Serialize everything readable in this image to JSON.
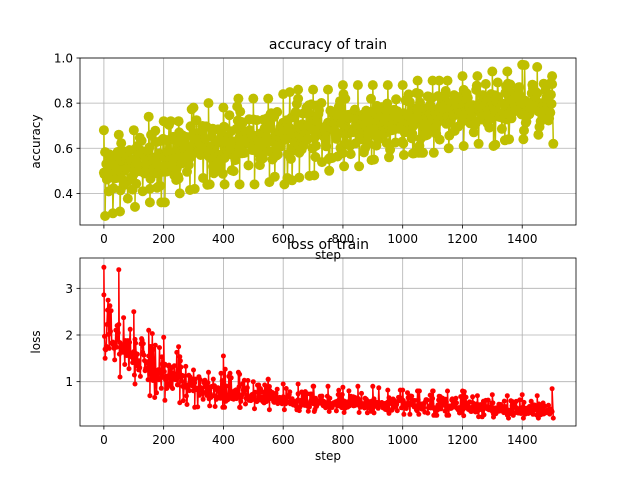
{
  "chart_data": [
    {
      "type": "line",
      "title": "accuracy of train",
      "xlabel": "step",
      "ylabel": "accuracy",
      "xlim": [
        -80,
        1580
      ],
      "ylim": [
        0.26,
        1.0
      ],
      "xticks": [
        0,
        200,
        400,
        600,
        800,
        1000,
        1200,
        1400
      ],
      "yticks": [
        0.4,
        0.6,
        0.8,
        1.0
      ],
      "grid": true,
      "color": "#bfbf00",
      "marker": "circle-large",
      "series": [
        {
          "x": [
            0,
            50,
            100,
            150,
            200,
            250,
            300,
            350,
            400,
            450,
            500,
            550,
            600,
            650,
            700,
            750,
            800,
            850,
            900,
            950,
            1000,
            1050,
            1100,
            1150,
            1200,
            1250,
            1300,
            1350,
            1400,
            1450,
            1500
          ],
          "y": [
            0.48,
            0.5,
            0.52,
            0.55,
            0.56,
            0.58,
            0.6,
            0.62,
            0.62,
            0.63,
            0.64,
            0.65,
            0.66,
            0.67,
            0.68,
            0.69,
            0.7,
            0.7,
            0.71,
            0.72,
            0.73,
            0.74,
            0.74,
            0.75,
            0.76,
            0.77,
            0.77,
            0.78,
            0.79,
            0.8,
            0.8
          ],
          "low": [
            0.3,
            0.32,
            0.34,
            0.36,
            0.36,
            0.4,
            0.42,
            0.44,
            0.44,
            0.44,
            0.44,
            0.45,
            0.44,
            0.47,
            0.48,
            0.5,
            0.52,
            0.52,
            0.55,
            0.56,
            0.57,
            0.58,
            0.58,
            0.6,
            0.61,
            0.62,
            0.61,
            0.64,
            0.64,
            0.66,
            0.62
          ],
          "high": [
            0.68,
            0.66,
            0.68,
            0.74,
            0.72,
            0.72,
            0.78,
            0.8,
            0.78,
            0.82,
            0.82,
            0.82,
            0.84,
            0.86,
            0.86,
            0.86,
            0.88,
            0.88,
            0.88,
            0.88,
            0.88,
            0.9,
            0.9,
            0.9,
            0.92,
            0.92,
            0.94,
            0.94,
            0.97,
            0.96,
            0.92
          ]
        }
      ]
    },
    {
      "type": "line",
      "title": "loss of train",
      "xlabel": "step",
      "ylabel": "loss",
      "xlim": [
        -80,
        1580
      ],
      "ylim": [
        0.05,
        3.65
      ],
      "xticks": [
        0,
        200,
        400,
        600,
        800,
        1000,
        1200,
        1400
      ],
      "yticks": [
        1,
        2,
        3
      ],
      "grid": true,
      "color": "#ff0000",
      "marker": "circle-small",
      "series": [
        {
          "x": [
            0,
            50,
            100,
            150,
            200,
            250,
            300,
            350,
            400,
            450,
            500,
            550,
            600,
            650,
            700,
            750,
            800,
            850,
            900,
            950,
            1000,
            1050,
            1100,
            1150,
            1200,
            1250,
            1300,
            1350,
            1400,
            1450,
            1500
          ],
          "y": [
            2.0,
            1.8,
            1.55,
            1.35,
            1.2,
            1.05,
            0.9,
            0.82,
            0.78,
            0.74,
            0.7,
            0.66,
            0.62,
            0.6,
            0.58,
            0.56,
            0.55,
            0.54,
            0.53,
            0.52,
            0.5,
            0.49,
            0.48,
            0.47,
            0.46,
            0.44,
            0.42,
            0.41,
            0.4,
            0.4,
            0.4
          ],
          "low": [
            1.5,
            1.1,
            0.95,
            0.7,
            0.6,
            0.55,
            0.45,
            0.48,
            0.45,
            0.45,
            0.42,
            0.4,
            0.4,
            0.38,
            0.36,
            0.36,
            0.34,
            0.34,
            0.33,
            0.32,
            0.3,
            0.3,
            0.28,
            0.28,
            0.27,
            0.25,
            0.24,
            0.22,
            0.22,
            0.22,
            0.22
          ],
          "high": [
            3.45,
            3.4,
            2.5,
            2.1,
            1.95,
            1.75,
            1.25,
            1.2,
            1.55,
            1.2,
            1.0,
            1.05,
            0.95,
            0.95,
            0.9,
            0.9,
            0.88,
            0.9,
            0.9,
            0.82,
            0.82,
            0.8,
            0.8,
            0.8,
            0.8,
            0.7,
            0.72,
            0.7,
            0.72,
            0.7,
            0.85
          ]
        }
      ]
    }
  ]
}
